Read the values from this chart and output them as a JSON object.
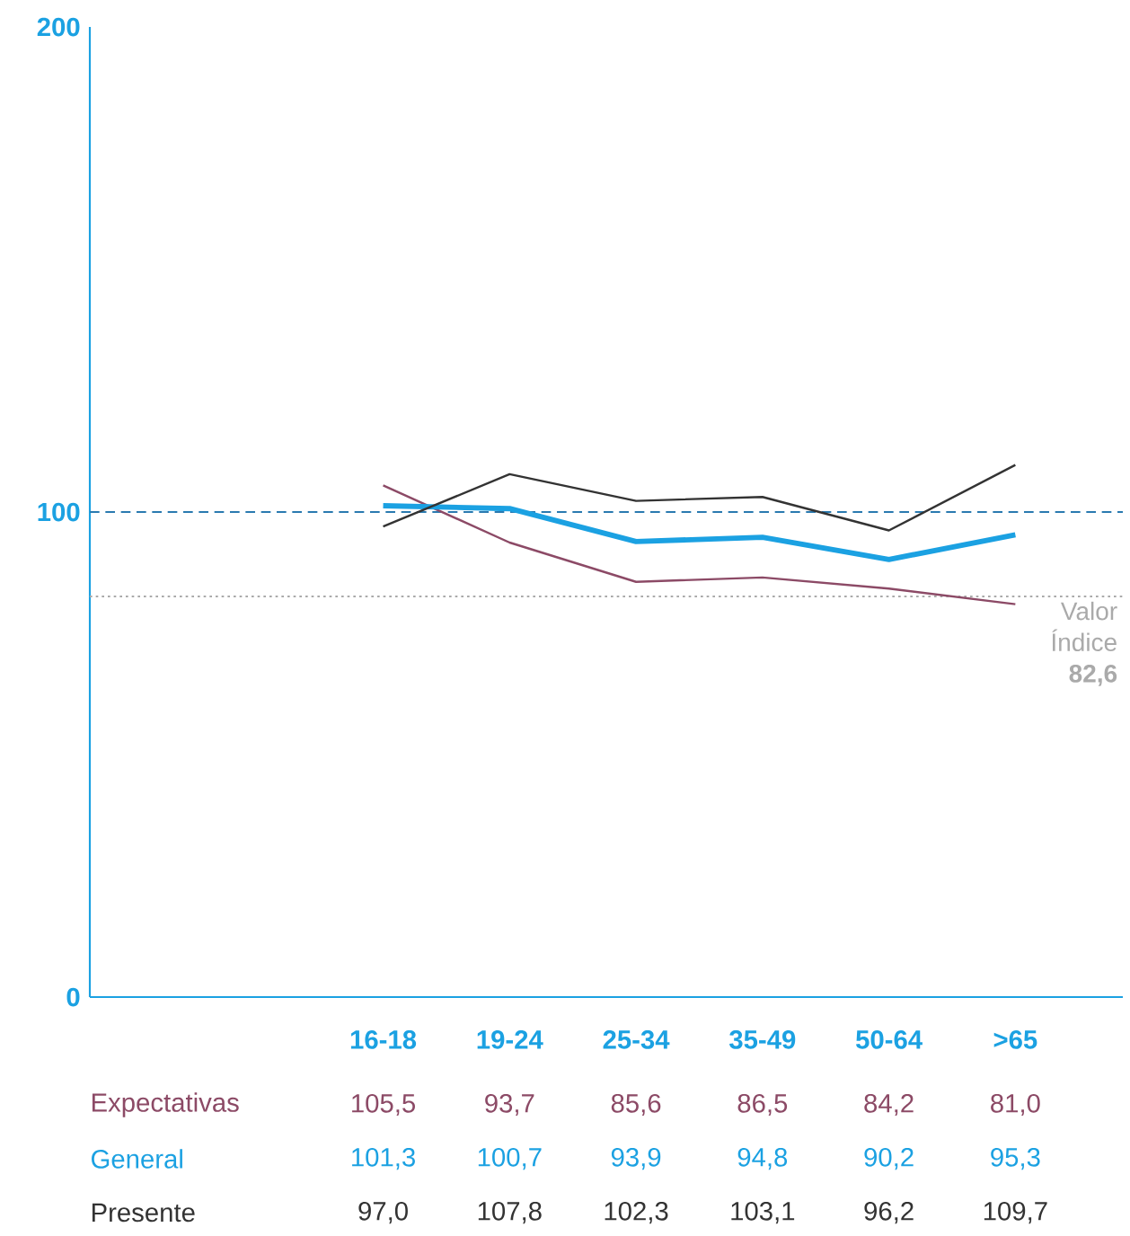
{
  "chart_data": {
    "type": "line",
    "categories": [
      "16-18",
      "19-24",
      "25-34",
      "35-49",
      "50-64",
      ">65"
    ],
    "series": [
      {
        "name": "Expectativas",
        "color": "#8c4a66",
        "values": [
          105.5,
          93.7,
          85.6,
          86.5,
          84.2,
          81.0
        ],
        "value_labels": [
          "105,5",
          "93,7",
          "85,6",
          "86,5",
          "84,2",
          "81,0"
        ]
      },
      {
        "name": "General",
        "color": "#1ba1e2",
        "values": [
          101.3,
          100.7,
          93.9,
          94.8,
          90.2,
          95.3
        ],
        "value_labels": [
          "101,3",
          "100,7",
          "93,9",
          "94,8",
          "90,2",
          "95,3"
        ]
      },
      {
        "name": "Presente",
        "color": "#333333",
        "values": [
          97.0,
          107.8,
          102.3,
          103.1,
          96.2,
          109.7
        ],
        "value_labels": [
          "97,0",
          "107,8",
          "102,3",
          "103,1",
          "96,2",
          "109,7"
        ]
      }
    ],
    "ylim": [
      0,
      200
    ],
    "yticks": [
      0,
      100,
      200
    ],
    "marker": "none",
    "line_style": "solid",
    "grid": false,
    "ref_lines": [
      {
        "axis": "y",
        "value": 100,
        "color": "#2a7ab0",
        "line_style": "dashed"
      },
      {
        "axis": "y",
        "value": 82.6,
        "color": "#aaaaaa",
        "line_style": "dotted",
        "label": "Valor Índice **82,6**"
      }
    ]
  }
}
